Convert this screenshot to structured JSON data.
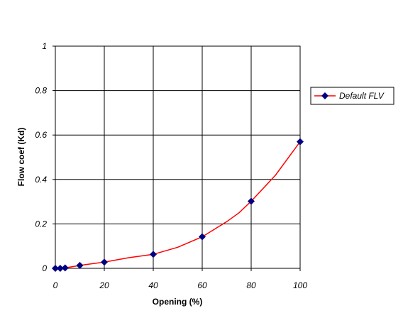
{
  "chart_data": {
    "type": "line",
    "xlabel": "Opening (%)",
    "ylabel": "Flow coef (Kd)",
    "xlim": [
      0,
      100
    ],
    "ylim": [
      0,
      1
    ],
    "x_ticks": [
      "0",
      "20",
      "40",
      "60",
      "80",
      "100"
    ],
    "y_ticks": [
      "0",
      "0.2",
      "0.4",
      "0.6",
      "0.8",
      "1"
    ],
    "grid": true,
    "legend": "right",
    "series": [
      {
        "name": "Default FLV",
        "color": "#ff0000",
        "marker_color": "#000080",
        "marker": "diamond",
        "x": [
          0,
          2,
          4,
          10,
          20,
          40,
          60,
          80,
          100
        ],
        "y": [
          0.0,
          0.0,
          0.002,
          0.013,
          0.028,
          0.063,
          0.142,
          0.302,
          0.57
        ],
        "line_x": [
          0,
          2,
          4,
          10,
          20,
          30,
          40,
          50,
          60,
          70,
          75,
          80,
          90,
          100
        ],
        "line_y": [
          0.0,
          0.0,
          0.002,
          0.013,
          0.028,
          0.048,
          0.063,
          0.095,
          0.142,
          0.21,
          0.25,
          0.302,
          0.42,
          0.57
        ]
      }
    ]
  }
}
